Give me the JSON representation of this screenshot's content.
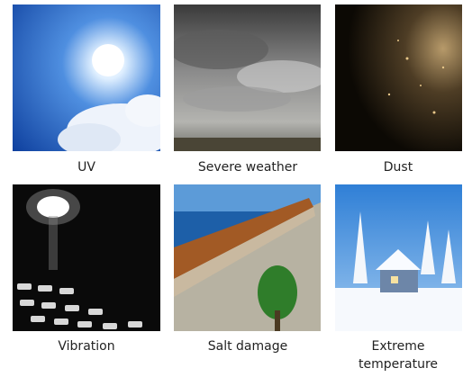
{
  "items": [
    {
      "caption": "UV"
    },
    {
      "caption": "Severe weather"
    },
    {
      "caption": "Dust"
    },
    {
      "caption": "Vibration"
    },
    {
      "caption": "Salt damage"
    },
    {
      "caption": "Extreme temperature"
    }
  ]
}
